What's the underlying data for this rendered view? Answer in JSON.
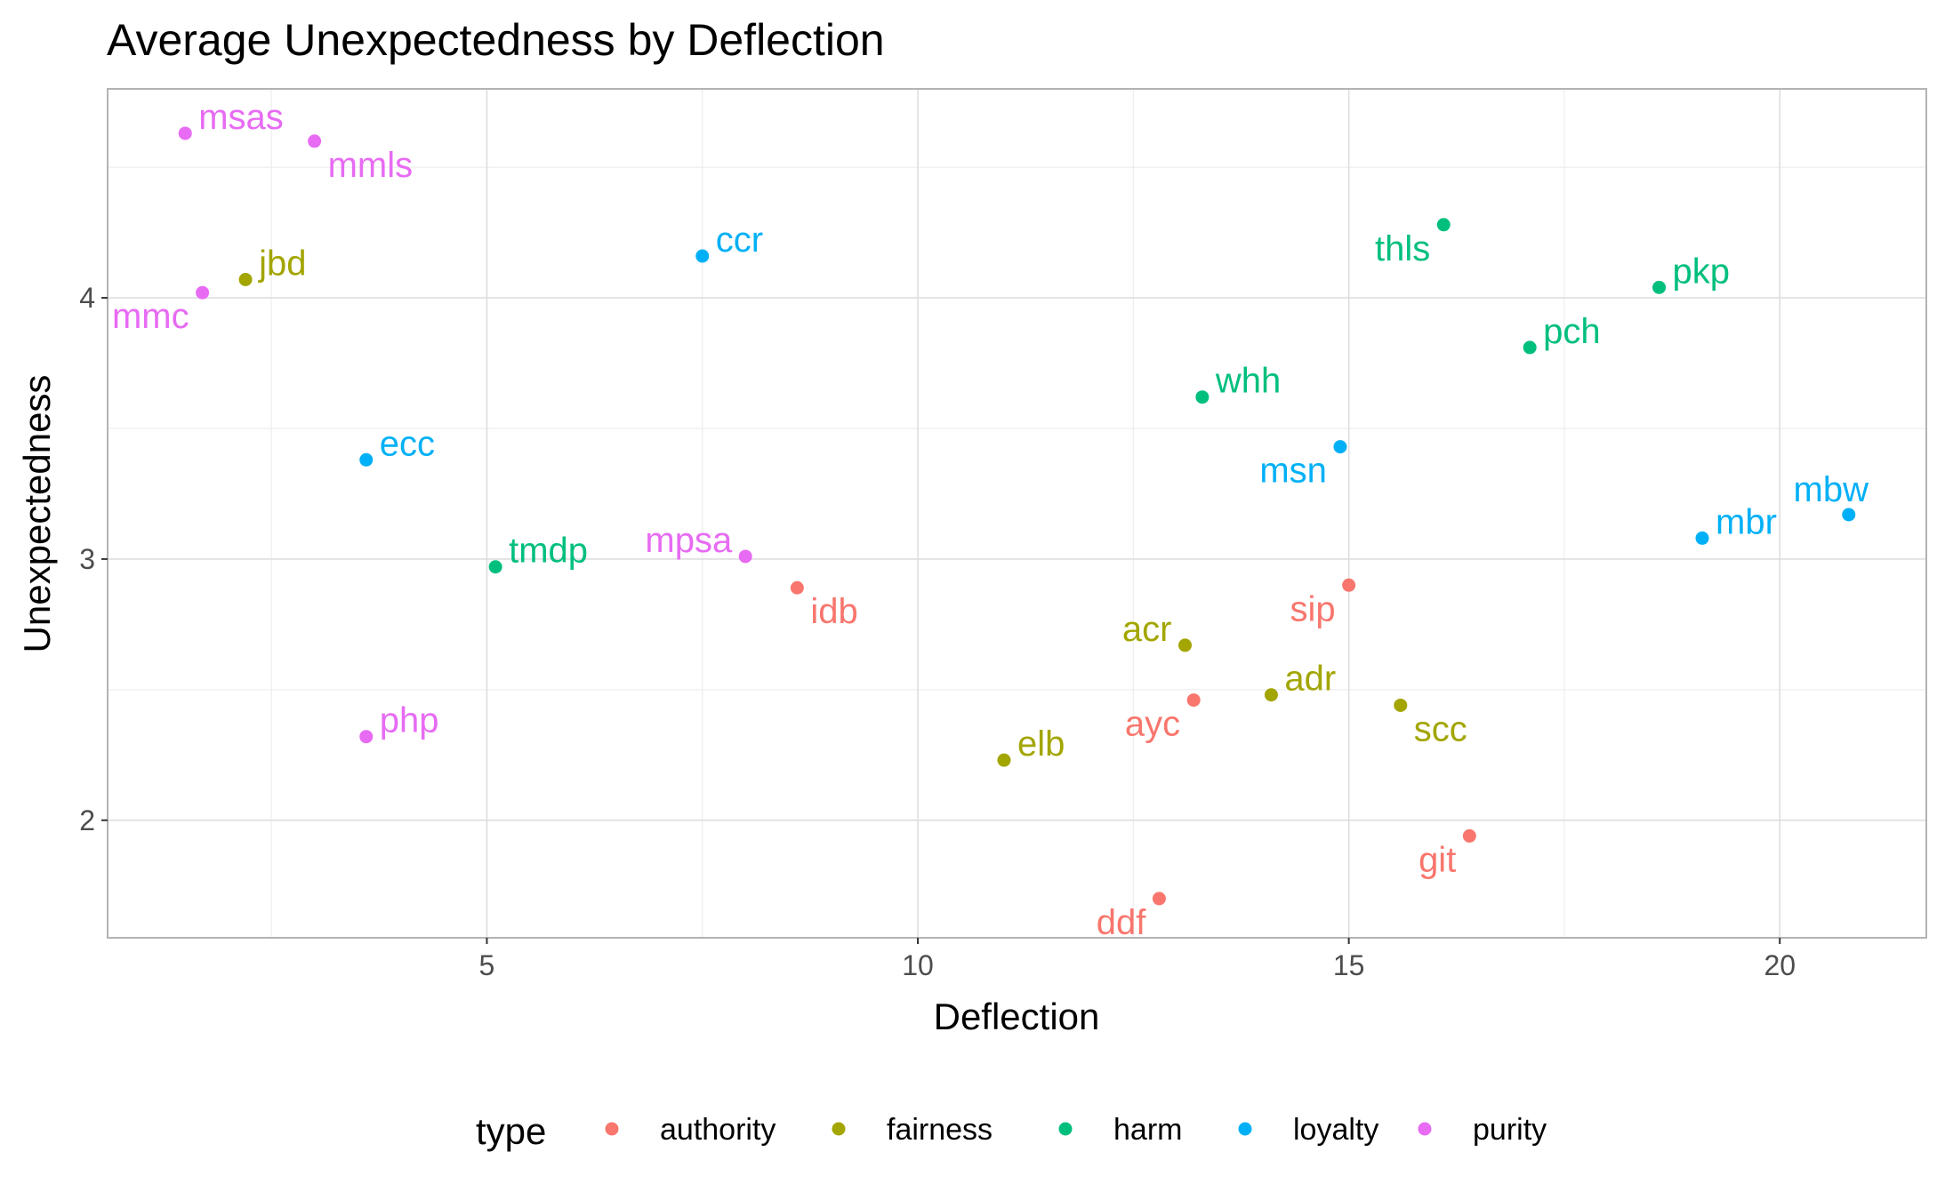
{
  "chart_data": {
    "type": "scatter",
    "title": "Average Unexpectedness by Deflection",
    "xlabel": "Deflection",
    "ylabel": "Unexpectedness",
    "xlim": [
      0.6,
      21.7
    ],
    "ylim": [
      1.55,
      4.8
    ],
    "x_ticks": [
      5,
      10,
      15,
      20
    ],
    "y_ticks": [
      2,
      3,
      4
    ],
    "grid": true,
    "legend": {
      "title": "type",
      "position": "bottom",
      "entries": [
        {
          "name": "authority",
          "color": "#F8766D"
        },
        {
          "name": "fairness",
          "color": "#A3A500"
        },
        {
          "name": "harm",
          "color": "#00BF7D"
        },
        {
          "name": "loyalty",
          "color": "#00B0F6"
        },
        {
          "name": "purity",
          "color": "#E76BF3"
        }
      ]
    },
    "points": [
      {
        "label": "msas",
        "type": "purity",
        "x": 1.5,
        "y": 4.63,
        "anchor": "right"
      },
      {
        "label": "mmls",
        "type": "purity",
        "x": 3.0,
        "y": 4.6,
        "anchor": "below-right"
      },
      {
        "label": "mmc",
        "type": "purity",
        "x": 1.7,
        "y": 4.02,
        "anchor": "below-left"
      },
      {
        "label": "jbd",
        "type": "fairness",
        "x": 2.2,
        "y": 4.07,
        "anchor": "right"
      },
      {
        "label": "ccr",
        "type": "loyalty",
        "x": 7.5,
        "y": 4.16,
        "anchor": "right"
      },
      {
        "label": "ecc",
        "type": "loyalty",
        "x": 3.6,
        "y": 3.38,
        "anchor": "right"
      },
      {
        "label": "tmdp",
        "type": "harm",
        "x": 5.1,
        "y": 2.97,
        "anchor": "right"
      },
      {
        "label": "php",
        "type": "purity",
        "x": 3.6,
        "y": 2.32,
        "anchor": "right"
      },
      {
        "label": "mpsa",
        "type": "purity",
        "x": 8.0,
        "y": 3.01,
        "anchor": "left"
      },
      {
        "label": "idb",
        "type": "authority",
        "x": 8.6,
        "y": 2.89,
        "anchor": "below-right"
      },
      {
        "label": "elb",
        "type": "fairness",
        "x": 11.0,
        "y": 2.23,
        "anchor": "right"
      },
      {
        "label": "ddf",
        "type": "authority",
        "x": 12.8,
        "y": 1.7,
        "anchor": "below-left"
      },
      {
        "label": "acr",
        "type": "fairness",
        "x": 13.1,
        "y": 2.67,
        "anchor": "left"
      },
      {
        "label": "ayc",
        "type": "authority",
        "x": 13.2,
        "y": 2.46,
        "anchor": "below-left"
      },
      {
        "label": "whh",
        "type": "harm",
        "x": 13.3,
        "y": 3.62,
        "anchor": "right"
      },
      {
        "label": "adr",
        "type": "fairness",
        "x": 14.1,
        "y": 2.48,
        "anchor": "right"
      },
      {
        "label": "msn",
        "type": "loyalty",
        "x": 14.9,
        "y": 3.43,
        "anchor": "below-left"
      },
      {
        "label": "sip",
        "type": "authority",
        "x": 15.0,
        "y": 2.9,
        "anchor": "below-left"
      },
      {
        "label": "scc",
        "type": "fairness",
        "x": 15.6,
        "y": 2.44,
        "anchor": "below-right"
      },
      {
        "label": "thls",
        "type": "harm",
        "x": 16.1,
        "y": 4.28,
        "anchor": "below-left"
      },
      {
        "label": "git",
        "type": "authority",
        "x": 16.4,
        "y": 1.94,
        "anchor": "below-left"
      },
      {
        "label": "pch",
        "type": "harm",
        "x": 17.1,
        "y": 3.81,
        "anchor": "right"
      },
      {
        "label": "pkp",
        "type": "harm",
        "x": 18.6,
        "y": 4.04,
        "anchor": "right"
      },
      {
        "label": "mbr",
        "type": "loyalty",
        "x": 19.1,
        "y": 3.08,
        "anchor": "right"
      },
      {
        "label": "mbw",
        "type": "loyalty",
        "x": 20.8,
        "y": 3.17,
        "anchor": "above"
      }
    ]
  }
}
